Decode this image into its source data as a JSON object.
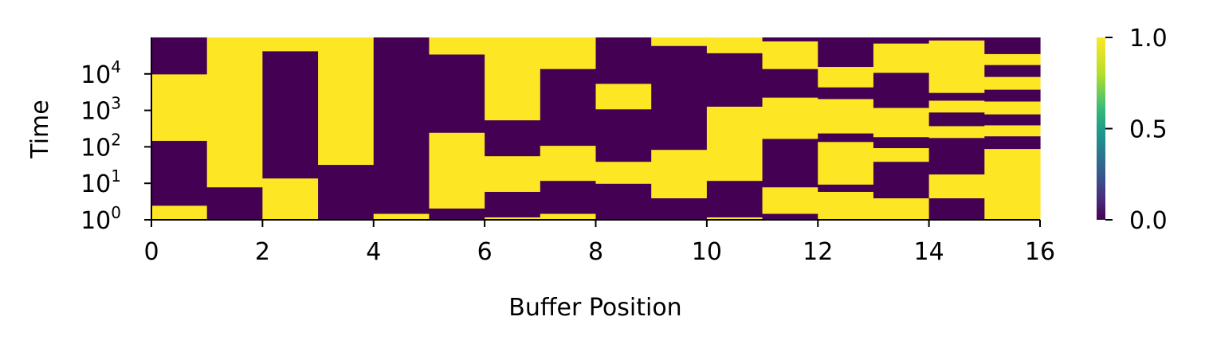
{
  "chart_data": {
    "type": "heatmap",
    "xlabel": "Buffer Position",
    "ylabel": "Time",
    "x_range": [
      0,
      16
    ],
    "x_ticks": [
      "0",
      "2",
      "4",
      "6",
      "8",
      "10",
      "12",
      "14",
      "16"
    ],
    "y_scale": "log",
    "y_range": [
      1,
      100000
    ],
    "y_ticks": [
      {
        "base": "10",
        "exp": "0",
        "value": 1
      },
      {
        "base": "10",
        "exp": "1",
        "value": 10
      },
      {
        "base": "10",
        "exp": "2",
        "value": 100
      },
      {
        "base": "10",
        "exp": "3",
        "value": 1000
      },
      {
        "base": "10",
        "exp": "4",
        "value": 10000
      }
    ],
    "colorbar": {
      "colormap": "viridis",
      "range": [
        0.0,
        1.0
      ],
      "ticks": [
        "0.0",
        "0.5",
        "1.0"
      ],
      "low_color": "#440154",
      "high_color": "#fde725"
    },
    "columns": [
      {
        "x": 0,
        "segments": [
          {
            "from": 1,
            "to": 2.5,
            "value": 1
          },
          {
            "from": 2.5,
            "to": 150,
            "value": 0
          },
          {
            "from": 150,
            "to": 10000,
            "value": 1
          },
          {
            "from": 10000,
            "to": 100000,
            "value": 0
          }
        ]
      },
      {
        "x": 1,
        "segments": [
          {
            "from": 1,
            "to": 8,
            "value": 0
          },
          {
            "from": 8,
            "to": 100000,
            "value": 1
          }
        ]
      },
      {
        "x": 2,
        "segments": [
          {
            "from": 1,
            "to": 14,
            "value": 1
          },
          {
            "from": 14,
            "to": 43000,
            "value": 0
          },
          {
            "from": 43000,
            "to": 100000,
            "value": 1
          }
        ]
      },
      {
        "x": 3,
        "segments": [
          {
            "from": 1,
            "to": 33,
            "value": 0
          },
          {
            "from": 33,
            "to": 100000,
            "value": 1
          }
        ]
      },
      {
        "x": 4,
        "segments": [
          {
            "from": 1,
            "to": 1.5,
            "value": 1
          },
          {
            "from": 1.5,
            "to": 100000,
            "value": 0
          }
        ]
      },
      {
        "x": 5,
        "segments": [
          {
            "from": 1,
            "to": 2.1,
            "value": 0
          },
          {
            "from": 2.1,
            "to": 250,
            "value": 1
          },
          {
            "from": 250,
            "to": 35000,
            "value": 0
          },
          {
            "from": 35000,
            "to": 100000,
            "value": 1
          }
        ]
      },
      {
        "x": 6,
        "segments": [
          {
            "from": 1,
            "to": 1.2,
            "value": 1
          },
          {
            "from": 1.2,
            "to": 6,
            "value": 0
          },
          {
            "from": 6,
            "to": 57,
            "value": 1
          },
          {
            "from": 57,
            "to": 550,
            "value": 0
          },
          {
            "from": 550,
            "to": 100000,
            "value": 1
          }
        ]
      },
      {
        "x": 7,
        "segments": [
          {
            "from": 1,
            "to": 1.5,
            "value": 1
          },
          {
            "from": 1.5,
            "to": 12,
            "value": 0
          },
          {
            "from": 12,
            "to": 110,
            "value": 1
          },
          {
            "from": 110,
            "to": 14000,
            "value": 0
          },
          {
            "from": 14000,
            "to": 100000,
            "value": 1
          }
        ]
      },
      {
        "x": 8,
        "segments": [
          {
            "from": 1,
            "to": 10,
            "value": 0
          },
          {
            "from": 10,
            "to": 40,
            "value": 1
          },
          {
            "from": 40,
            "to": 1100,
            "value": 0
          },
          {
            "from": 1100,
            "to": 5500,
            "value": 1
          },
          {
            "from": 5500,
            "to": 100000,
            "value": 0
          }
        ]
      },
      {
        "x": 9,
        "segments": [
          {
            "from": 1,
            "to": 4,
            "value": 0
          },
          {
            "from": 4,
            "to": 85,
            "value": 1
          },
          {
            "from": 85,
            "to": 60000,
            "value": 0
          },
          {
            "from": 60000,
            "to": 100000,
            "value": 1
          }
        ]
      },
      {
        "x": 10,
        "segments": [
          {
            "from": 1,
            "to": 1.2,
            "value": 1
          },
          {
            "from": 1.2,
            "to": 12,
            "value": 0
          },
          {
            "from": 12,
            "to": 1300,
            "value": 1
          },
          {
            "from": 1300,
            "to": 38000,
            "value": 0
          },
          {
            "from": 38000,
            "to": 100000,
            "value": 1
          }
        ]
      },
      {
        "x": 11,
        "segments": [
          {
            "from": 1,
            "to": 1.5,
            "value": 0
          },
          {
            "from": 1.5,
            "to": 8,
            "value": 1
          },
          {
            "from": 8,
            "to": 170,
            "value": 0
          },
          {
            "from": 170,
            "to": 2300,
            "value": 1
          },
          {
            "from": 2300,
            "to": 14000,
            "value": 0
          },
          {
            "from": 14000,
            "to": 80000,
            "value": 1
          },
          {
            "from": 80000,
            "to": 100000,
            "value": 0
          }
        ]
      },
      {
        "x": 12,
        "segments": [
          {
            "from": 1,
            "to": 6,
            "value": 1
          },
          {
            "from": 6,
            "to": 9.5,
            "value": 0
          },
          {
            "from": 9.5,
            "to": 140,
            "value": 1
          },
          {
            "from": 140,
            "to": 240,
            "value": 0
          },
          {
            "from": 240,
            "to": 2100,
            "value": 1
          },
          {
            "from": 2100,
            "to": 4400,
            "value": 0
          },
          {
            "from": 4400,
            "to": 16000,
            "value": 1
          },
          {
            "from": 16000,
            "to": 100000,
            "value": 0
          }
        ]
      },
      {
        "x": 13,
        "segments": [
          {
            "from": 1,
            "to": 4,
            "value": 1
          },
          {
            "from": 4,
            "to": 40,
            "value": 0
          },
          {
            "from": 40,
            "to": 95,
            "value": 1
          },
          {
            "from": 95,
            "to": 190,
            "value": 0
          },
          {
            "from": 190,
            "to": 1200,
            "value": 1
          },
          {
            "from": 1200,
            "to": 11000,
            "value": 0
          },
          {
            "from": 11000,
            "to": 70000,
            "value": 1
          },
          {
            "from": 70000,
            "to": 100000,
            "value": 0
          }
        ]
      },
      {
        "x": 14,
        "segments": [
          {
            "from": 1,
            "to": 4,
            "value": 0
          },
          {
            "from": 4,
            "to": 18,
            "value": 1
          },
          {
            "from": 18,
            "to": 180,
            "value": 0
          },
          {
            "from": 180,
            "to": 380,
            "value": 1
          },
          {
            "from": 380,
            "to": 900,
            "value": 0
          },
          {
            "from": 900,
            "to": 1900,
            "value": 1
          },
          {
            "from": 1900,
            "to": 3100,
            "value": 0
          },
          {
            "from": 3100,
            "to": 85000,
            "value": 1
          },
          {
            "from": 85000,
            "to": 100000,
            "value": 0
          }
        ]
      },
      {
        "x": 15,
        "segments": [
          {
            "from": 1,
            "to": 90,
            "value": 1
          },
          {
            "from": 90,
            "to": 200,
            "value": 0
          },
          {
            "from": 200,
            "to": 400,
            "value": 1
          },
          {
            "from": 400,
            "to": 800,
            "value": 0
          },
          {
            "from": 800,
            "to": 1800,
            "value": 1
          },
          {
            "from": 1800,
            "to": 3800,
            "value": 0
          },
          {
            "from": 3800,
            "to": 8500,
            "value": 1
          },
          {
            "from": 8500,
            "to": 18000,
            "value": 0
          },
          {
            "from": 18000,
            "to": 36000,
            "value": 1
          },
          {
            "from": 36000,
            "to": 100000,
            "value": 0
          }
        ]
      }
    ]
  }
}
